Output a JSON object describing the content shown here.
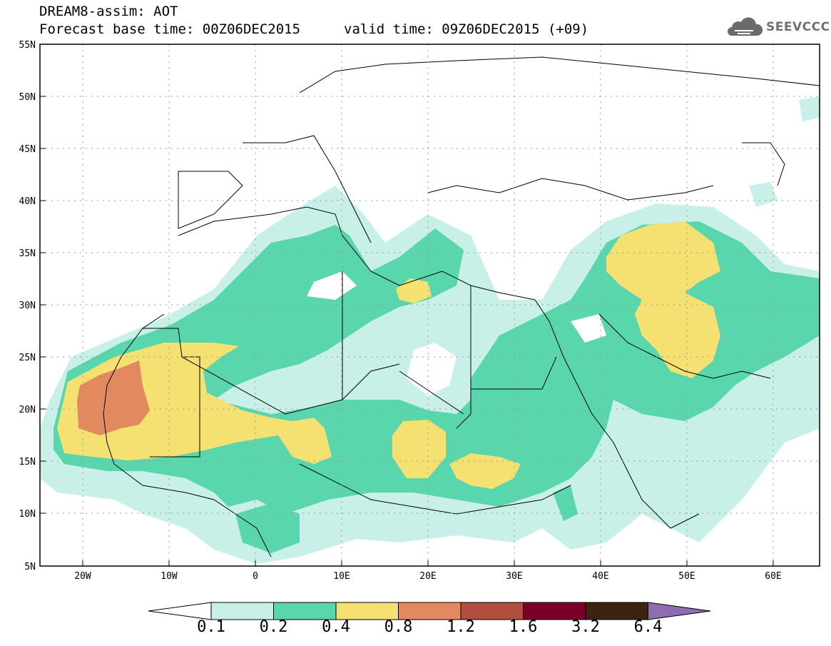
{
  "title": {
    "line1": "DREAM8-assim: AOT",
    "base": "Forecast base time: 00Z06DEC2015",
    "valid": "valid time: 09Z06DEC2015 (+09)"
  },
  "logo": {
    "name": "cloud-icon",
    "text": "SEEVCCC"
  },
  "map": {
    "lon_range": [
      -25,
      65
    ],
    "lat_range": [
      5,
      55
    ],
    "grid": "dotted",
    "lat_ticks": [
      "55N",
      "50N",
      "45N",
      "40N",
      "35N",
      "30N",
      "25N",
      "20N",
      "15N",
      "10N",
      "5N"
    ],
    "lon_ticks": [
      "20W",
      "10W",
      "0",
      "10E",
      "20E",
      "30E",
      "40E",
      "50E",
      "60E"
    ]
  },
  "colorbar": {
    "levels": [
      "0.1",
      "0.2",
      "0.4",
      "0.8",
      "1.2",
      "1.6",
      "3.2",
      "6.4"
    ],
    "colors": [
      "#ffffff",
      "#c8f0e8",
      "#5ad6ac",
      "#f5e072",
      "#e2895f",
      "#b04e3f",
      "#7a0029",
      "#3c2412",
      "#8e6eb3"
    ]
  }
}
